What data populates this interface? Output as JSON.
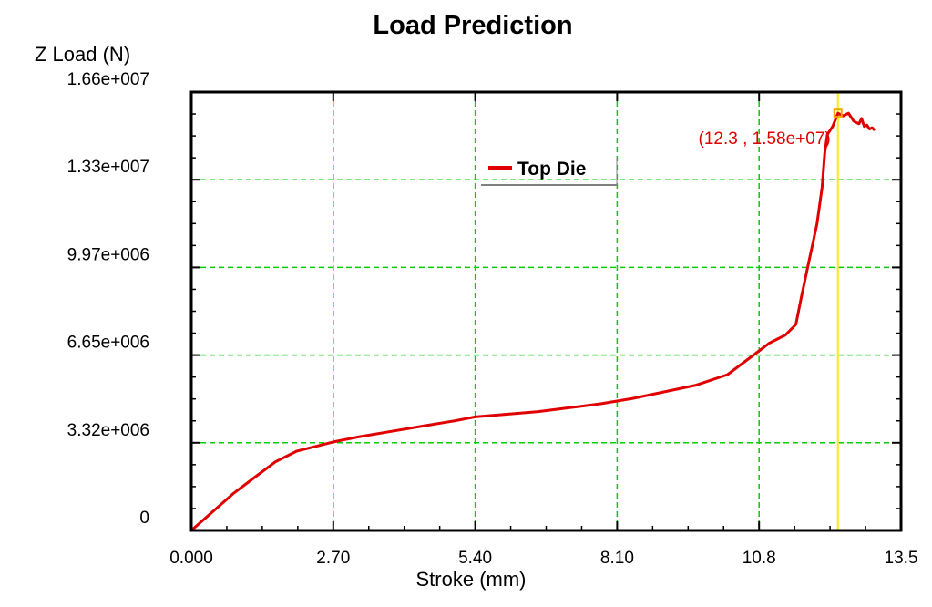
{
  "chart_data": {
    "type": "line",
    "title": "Load Prediction",
    "xlabel": "Stroke (mm)",
    "ylabel": "Z Load (N)",
    "xlim": [
      0,
      13.5
    ],
    "ylim": [
      0,
      16600000
    ],
    "x_ticks": [
      "0.000",
      "2.70",
      "5.40",
      "8.10",
      "10.8",
      "13.5"
    ],
    "y_ticks": [
      "0",
      "3.32e+006",
      "6.65e+006",
      "9.97e+006",
      "1.33e+007",
      "1.66e+007"
    ],
    "grid": true,
    "legend_position": "top-center",
    "colors": {
      "series": "#e00000",
      "grid": "#00cc00",
      "cursor": "#ffee00",
      "marker": "#ffa500",
      "annotation": "#e00000"
    },
    "series": [
      {
        "name": "Top Die",
        "x": [
          0,
          0.4,
          0.8,
          1.2,
          1.6,
          2.0,
          2.4,
          2.7,
          3.2,
          3.8,
          4.4,
          5.0,
          5.4,
          6.0,
          6.6,
          7.2,
          7.8,
          8.4,
          9.0,
          9.6,
          10.2,
          10.5,
          10.8,
          11.0,
          11.3,
          11.5,
          11.6,
          11.75,
          11.9,
          12.0,
          12.05,
          12.1,
          12.2,
          12.3,
          12.4,
          12.5,
          12.6,
          12.7,
          12.75,
          12.8,
          12.85,
          12.9,
          12.95,
          13.0
        ],
        "y": [
          0,
          700000,
          1400000,
          2000000,
          2600000,
          3000000,
          3200000,
          3350000,
          3550000,
          3750000,
          3950000,
          4150000,
          4300000,
          4400000,
          4500000,
          4650000,
          4800000,
          5000000,
          5250000,
          5500000,
          5900000,
          6350000,
          6800000,
          7100000,
          7400000,
          7800000,
          8800000,
          10200000,
          11600000,
          13000000,
          14300000,
          15000000,
          15300000,
          15800000,
          15700000,
          15800000,
          15500000,
          15400000,
          15600000,
          15300000,
          15350000,
          15200000,
          15250000,
          15150000
        ]
      }
    ],
    "cursor": {
      "x": 12.3,
      "y": 15800000
    },
    "annotation": "(12.3 , 1.58e+07)"
  }
}
